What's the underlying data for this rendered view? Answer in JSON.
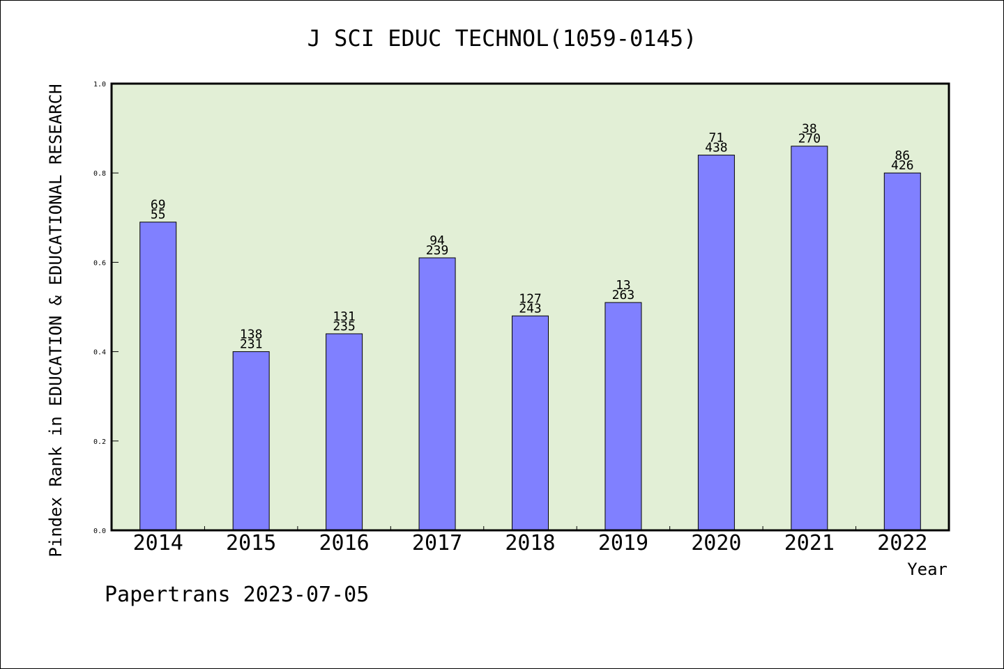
{
  "chart_data": {
    "type": "bar",
    "title": "J SCI EDUC TECHNOL(1059-0145)",
    "xlabel": "Year",
    "ylabel": "Pindex Rank in EDUCATION & EDUCATIONAL RESEARCH",
    "ylim": [
      0,
      1.0
    ],
    "yticks": [
      "0.0",
      "0.2",
      "0.4",
      "0.6",
      "0.8",
      "1.0"
    ],
    "categories": [
      "2014",
      "2015",
      "2016",
      "2017",
      "2018",
      "2019",
      "2020",
      "2021",
      "2022"
    ],
    "values": [
      0.69,
      0.4,
      0.44,
      0.61,
      0.48,
      0.51,
      0.84,
      0.86,
      0.8
    ],
    "rank_labels": [
      "69",
      "138",
      "131",
      "94",
      "127",
      "13",
      "71",
      "38",
      "86"
    ],
    "total_labels": [
      "55",
      "231",
      "235",
      "239",
      "243",
      "263",
      "438",
      "270",
      "426"
    ],
    "grid": false,
    "legend": "none",
    "colors": {
      "bar": "#8080ff",
      "plot_background": "#e2efd6",
      "frame": "#000000"
    }
  },
  "footer": "Papertrans 2023-07-05"
}
